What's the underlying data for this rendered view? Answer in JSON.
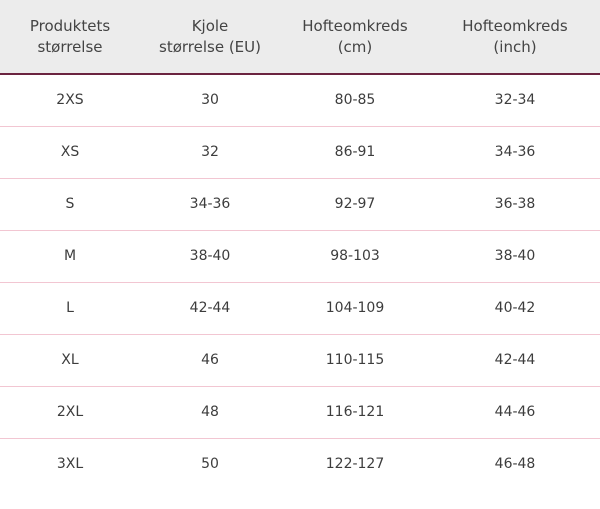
{
  "table": {
    "headers": [
      [
        "Produktets",
        "størrelse"
      ],
      [
        "Kjole",
        "størrelse (EU)"
      ],
      [
        "Hofteomkreds",
        "(cm)"
      ],
      [
        "Hofteomkreds",
        "(inch)"
      ]
    ],
    "rows": [
      [
        "2XS",
        "30",
        "80-85",
        "32-34"
      ],
      [
        "XS",
        "32",
        "86-91",
        "34-36"
      ],
      [
        "S",
        "34-36",
        "92-97",
        "36-38"
      ],
      [
        "M",
        "38-40",
        "98-103",
        "38-40"
      ],
      [
        "L",
        "42-44",
        "104-109",
        "40-42"
      ],
      [
        "XL",
        "46",
        "110-115",
        "42-44"
      ],
      [
        "2XL",
        "48",
        "116-121",
        "44-46"
      ],
      [
        "3XL",
        "50",
        "122-127",
        "46-48"
      ]
    ]
  },
  "colors": {
    "header_background": "#ececec",
    "header_rule": "#6b2440",
    "row_divider": "#f2c6d2",
    "text": "#3d3d3d"
  }
}
